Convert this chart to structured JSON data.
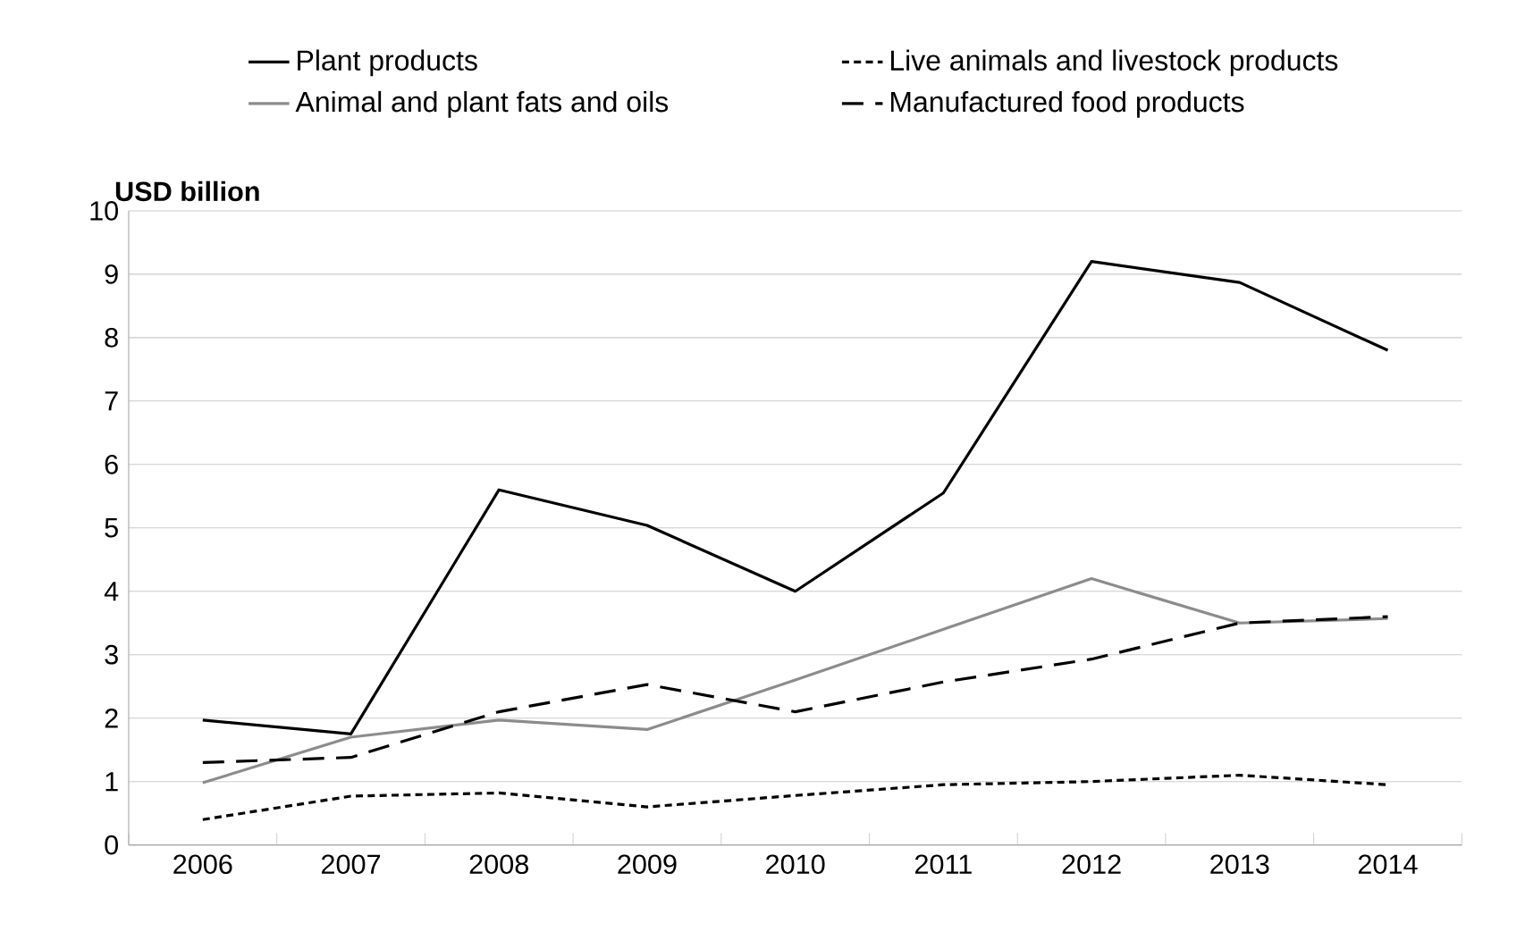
{
  "chart_data": {
    "type": "line",
    "ylabel": "USD billion",
    "categories": [
      "2006",
      "2007",
      "2008",
      "2009",
      "2010",
      "2011",
      "2012",
      "2013",
      "2014"
    ],
    "series": [
      {
        "name": "Plant products",
        "color": "#000000",
        "line_style": "solid",
        "values": [
          1.97,
          1.75,
          5.6,
          5.04,
          4.0,
          5.55,
          9.2,
          8.87,
          7.8
        ]
      },
      {
        "name": "Live animals and livestock products",
        "color": "#000000",
        "line_style": "dotted",
        "values": [
          0.4,
          0.77,
          0.82,
          0.6,
          0.78,
          0.95,
          1.0,
          1.1,
          0.95
        ]
      },
      {
        "name": "Animal and plant fats and oils",
        "color": "#8c8c8c",
        "line_style": "solid",
        "values": [
          0.98,
          1.7,
          1.97,
          1.82,
          2.6,
          3.4,
          4.2,
          3.5,
          3.57
        ]
      },
      {
        "name": "Manufactured food products",
        "color": "#000000",
        "line_style": "dashed",
        "values": [
          1.3,
          1.38,
          2.1,
          2.53,
          2.1,
          2.57,
          2.93,
          3.5,
          3.6
        ]
      }
    ],
    "ylim": [
      0,
      10
    ],
    "yticks": [
      0,
      1,
      2,
      3,
      4,
      5,
      6,
      7,
      8,
      9,
      10
    ],
    "grid": "y",
    "legend": "top",
    "marker": "none"
  }
}
